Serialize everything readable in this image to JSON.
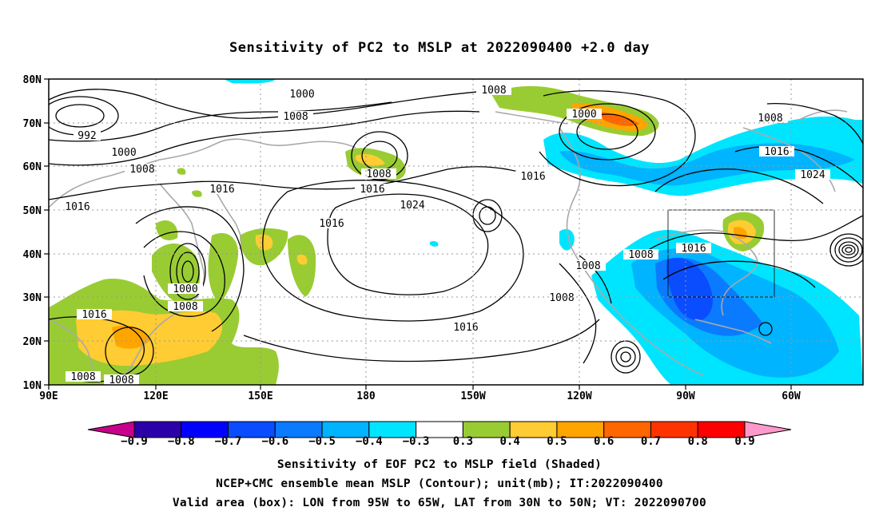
{
  "title": "Sensitivity of PC2 to MSLP at 2022090400 +2.0 day",
  "map": {
    "lat_labels": [
      "80N",
      "70N",
      "60N",
      "50N",
      "40N",
      "30N",
      "20N",
      "10N"
    ],
    "lon_labels": [
      "90E",
      "120E",
      "150E",
      "180",
      "150W",
      "120W",
      "90W",
      "60W"
    ],
    "contour_labels": [
      {
        "text": "1000"
      },
      {
        "text": "1008"
      },
      {
        "text": "992"
      },
      {
        "text": "1000"
      },
      {
        "text": "1008"
      },
      {
        "text": "1016"
      },
      {
        "text": "1016"
      },
      {
        "text": "1008"
      },
      {
        "text": "1016"
      },
      {
        "text": "1016"
      },
      {
        "text": "1024"
      },
      {
        "text": "1008"
      },
      {
        "text": "1000"
      },
      {
        "text": "1016"
      },
      {
        "text": "1008"
      },
      {
        "text": "1016"
      },
      {
        "text": "1024"
      },
      {
        "text": "1008"
      },
      {
        "text": "1008"
      },
      {
        "text": "1016"
      },
      {
        "text": "1008"
      },
      {
        "text": "1000"
      },
      {
        "text": "1008"
      },
      {
        "text": "1016"
      },
      {
        "text": "1008"
      },
      {
        "text": "1008"
      },
      {
        "text": "1016"
      }
    ],
    "valid_box": {
      "lon_from": "95W",
      "lon_to": "65W",
      "lat_from": "30N",
      "lat_to": "50N"
    }
  },
  "colorbar": {
    "colors": [
      "#2b00a8",
      "#0000ff",
      "#0a4dff",
      "#0a7bff",
      "#00b4ff",
      "#00e5ff",
      "#ffffff",
      "#99cc33",
      "#ffcc33",
      "#ffa500",
      "#ff6600",
      "#ff3300",
      "#ff0000"
    ],
    "labels": [
      "-0.9",
      "-0.8",
      "-0.7",
      "-0.6",
      "-0.5",
      "-0.4",
      "-0.3",
      "0.3",
      "0.4",
      "0.5",
      "0.6",
      "0.7",
      "0.8",
      "0.9"
    ],
    "left_arrow_color": "#c8008c",
    "right_arrow_color": "#ff99cc"
  },
  "captions": [
    "Sensitivity of EOF PC2 to MSLP field (Shaded)",
    "NCEP+CMC ensemble mean MSLP (Contour); unit(mb); IT:2022090400",
    "Valid area (box): LON from 95W to 65W, LAT from 30N to 50N; VT: 2022090700"
  ]
}
